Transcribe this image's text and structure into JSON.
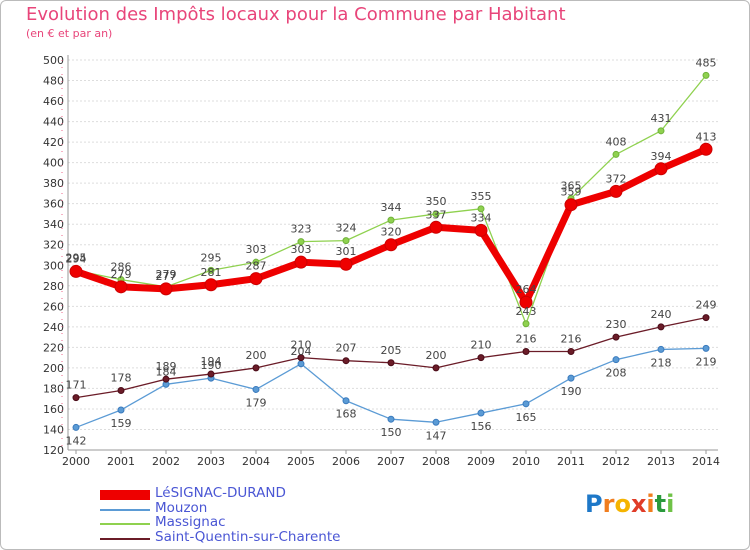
{
  "title": "Evolution des Impôts locaux pour la Commune par Habitant",
  "subtitle": "(en € et par an)",
  "logo": {
    "text": "Proxiti",
    "letters": [
      "P",
      "r",
      "o",
      "x",
      "i",
      "t",
      "i"
    ],
    "colors": [
      "#1e78c8",
      "#f07d1e",
      "#f5b400",
      "#e03c28",
      "#f07d1e",
      "#2a9a3c",
      "#6fc247"
    ]
  },
  "chart_data": {
    "type": "line",
    "x": [
      "2000",
      "2001",
      "2002",
      "2003",
      "2004",
      "2005",
      "2006",
      "2007",
      "2008",
      "2009",
      "2010",
      "2011",
      "2012",
      "2013",
      "2014"
    ],
    "ylim": [
      120,
      500
    ],
    "yticks": [
      120,
      140,
      160,
      180,
      200,
      220,
      240,
      260,
      280,
      300,
      320,
      340,
      360,
      380,
      400,
      420,
      440,
      460,
      480,
      500
    ],
    "grid": true,
    "series": [
      {
        "name": "Mouzon",
        "color": "#5b9bd5",
        "values": [
          142,
          159,
          184,
          190,
          179,
          204,
          168,
          150,
          147,
          156,
          165,
          190,
          208,
          218,
          219
        ],
        "labels": [
          "142",
          "159",
          "184",
          "190",
          "179",
          "204",
          "168",
          "150",
          "147",
          "156",
          "165",
          "190",
          "208",
          "218",
          "219"
        ]
      },
      {
        "name": "Saint-Quentin-sur-Charente",
        "color": "#6b1c28",
        "values": [
          171,
          178,
          189,
          194,
          200,
          210,
          207,
          205,
          200,
          210,
          216,
          216,
          230,
          240,
          249
        ],
        "labels": [
          "171",
          "178",
          "189",
          "194",
          "200",
          "210",
          "207",
          "205",
          "200",
          "210",
          "216",
          "216",
          "230",
          "240",
          "249"
        ]
      },
      {
        "name": "Massignac",
        "color": "#8fd14f",
        "values": [
          295,
          286,
          279,
          295,
          303,
          323,
          324,
          344,
          350,
          355,
          243,
          365,
          408,
          431,
          485
        ],
        "labels": [
          "295",
          "286",
          "279",
          "295",
          "303",
          "323",
          "324",
          "344",
          "350",
          "355",
          "243",
          "365",
          "408",
          "431",
          "485"
        ]
      },
      {
        "name": "LéSIGNAC-DURAND",
        "color": "#ee0000",
        "values": [
          294,
          279,
          277,
          281,
          287,
          303,
          301,
          320,
          337,
          334,
          264,
          359,
          372,
          394,
          413
        ],
        "labels": [
          "294",
          "279",
          "277",
          "281",
          "287",
          "303",
          "301",
          "320",
          "337",
          "334",
          "264",
          "359",
          "372",
          "394",
          "413"
        ]
      }
    ],
    "legend": [
      "LéSIGNAC-DURAND",
      "Mouzon",
      "Massignac",
      "Saint-Quentin-sur-Charente"
    ],
    "legend_position": "bottom-left"
  }
}
